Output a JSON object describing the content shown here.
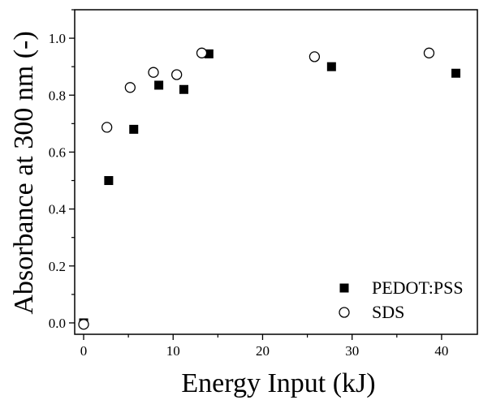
{
  "chart_data": {
    "type": "scatter",
    "title": "",
    "xlabel": "Energy Input (kJ)",
    "ylabel": "Absorbance at 300 nm (-)",
    "xlim": [
      -1,
      44
    ],
    "ylim": [
      -0.04,
      1.1
    ],
    "xticks": [
      0,
      10,
      20,
      30,
      40
    ],
    "yticks": [
      0.0,
      0.2,
      0.4,
      0.6,
      0.8,
      1.0
    ],
    "xtick_labels": [
      "0",
      "10",
      "20",
      "30",
      "40"
    ],
    "ytick_labels": [
      "0.0",
      "0.2",
      "0.4",
      "0.6",
      "0.8",
      "1.0"
    ],
    "grid": false,
    "legend_position": "bottom-right",
    "series": [
      {
        "name": "PEDOT:PSS",
        "marker": "filled-square",
        "color": "#000000",
        "points": [
          {
            "x": 0.0,
            "y": 0.0
          },
          {
            "x": 2.8,
            "y": 0.5
          },
          {
            "x": 5.6,
            "y": 0.68
          },
          {
            "x": 8.4,
            "y": 0.835
          },
          {
            "x": 11.2,
            "y": 0.82
          },
          {
            "x": 14.0,
            "y": 0.945
          },
          {
            "x": 27.7,
            "y": 0.9
          },
          {
            "x": 41.6,
            "y": 0.877
          }
        ]
      },
      {
        "name": "SDS",
        "marker": "open-circle",
        "color": "#000000",
        "points": [
          {
            "x": 0.0,
            "y": -0.005
          },
          {
            "x": 2.6,
            "y": 0.687
          },
          {
            "x": 5.2,
            "y": 0.827
          },
          {
            "x": 7.8,
            "y": 0.88
          },
          {
            "x": 10.4,
            "y": 0.872
          },
          {
            "x": 13.2,
            "y": 0.948
          },
          {
            "x": 25.8,
            "y": 0.935
          },
          {
            "x": 38.6,
            "y": 0.948
          }
        ]
      }
    ]
  }
}
